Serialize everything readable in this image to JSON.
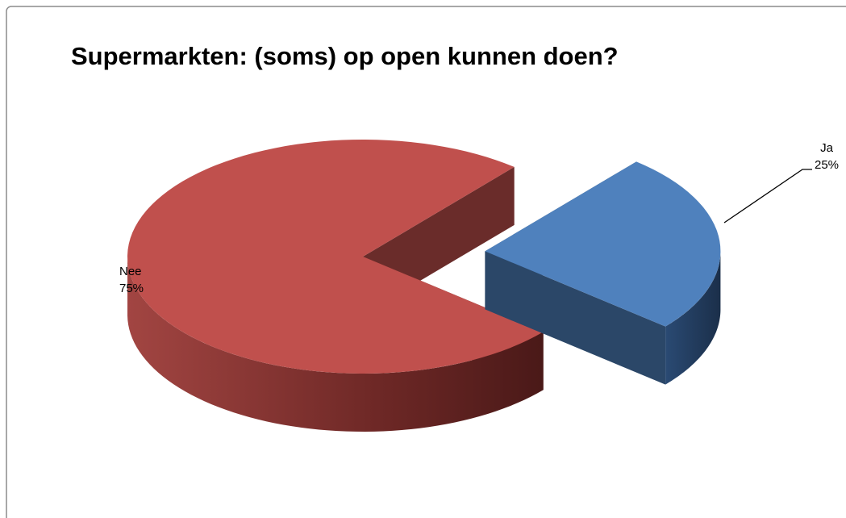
{
  "chart_data": {
    "type": "pie",
    "title": "Supermarkten: (soms) op  open kunnen doen?",
    "categories": [
      "Ja",
      "Nee"
    ],
    "values": [
      25,
      75
    ],
    "value_labels": [
      "25%",
      "75%"
    ],
    "colors": [
      "#4f81bd",
      "#c0504d"
    ]
  }
}
